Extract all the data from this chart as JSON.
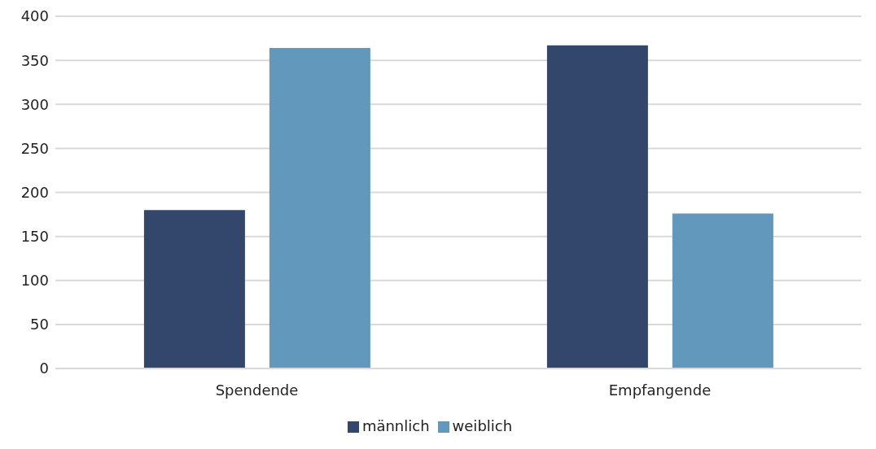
{
  "chart_data": {
    "type": "bar",
    "categories": [
      "Spendende",
      "Empfangende"
    ],
    "series": [
      {
        "name": "männlich",
        "color": "#33476d",
        "values": [
          180,
          367
        ]
      },
      {
        "name": "weiblich",
        "color": "#6298bb",
        "values": [
          364,
          176
        ]
      }
    ],
    "ylim": [
      0,
      400
    ],
    "yticks": [
      0,
      50,
      100,
      150,
      200,
      250,
      300,
      350,
      400
    ],
    "grid": "y",
    "legend": "bottom"
  }
}
